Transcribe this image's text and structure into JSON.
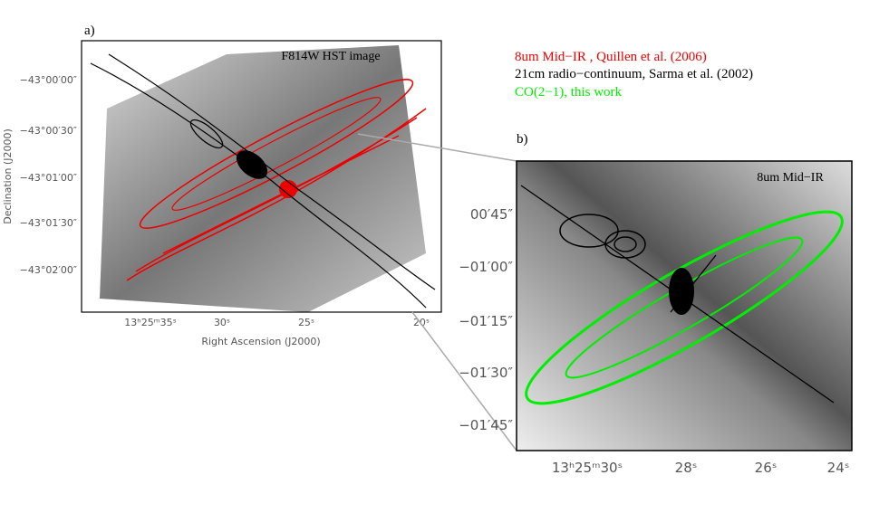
{
  "panel_a": {
    "label": "a)",
    "title": "F814W HST image",
    "y_axis_label": "Declination (J2000)",
    "x_axis_label": "Right Ascension (J2000)",
    "y_ticks": [
      "−43°00′00″",
      "−43°00′30″",
      "−43°01′00″",
      "−43°01′30″",
      "−43°02′00″"
    ],
    "x_ticks": [
      "13ʰ25ᵐ35ˢ",
      "30ˢ",
      "25ˢ",
      "20ˢ"
    ]
  },
  "legend": [
    "8um Mid−IR , Quillen et al. (2006)",
    "21cm radio−continuum, Sarma et al. (2002)",
    "CO(2−1), this work"
  ],
  "panel_b": {
    "label": "b)",
    "title": "8um Mid−IR",
    "y_ticks": [
      "00′45″",
      "−01′00″",
      "−01′15″",
      "−01′30″",
      "−01′45″"
    ],
    "x_ticks": [
      "13ʰ25ᵐ30ˢ",
      "28ˢ",
      "26ˢ",
      "24ˢ"
    ]
  }
}
